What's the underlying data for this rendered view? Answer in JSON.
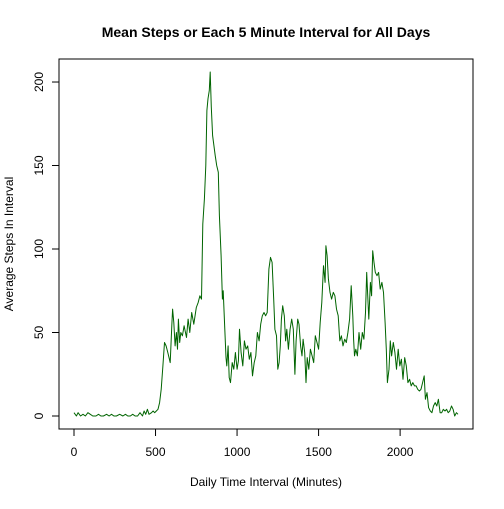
{
  "chart_data": {
    "type": "line",
    "title": "Mean Steps or Each 5 Minute Interval for All Days",
    "xlabel": "Daily Time Interval (Minutes)",
    "ylabel": "Average Steps In Interval",
    "xlim": [
      0,
      2355
    ],
    "ylim": [
      0,
      206
    ],
    "x_ticks": [
      0,
      500,
      1000,
      1500,
      2000
    ],
    "y_ticks": [
      0,
      50,
      100,
      150,
      200
    ],
    "grid": false,
    "legend": "none",
    "series": [
      {
        "color": "#006400",
        "points": [
          [
            0,
            2
          ],
          [
            15,
            0
          ],
          [
            25,
            2
          ],
          [
            40,
            0
          ],
          [
            55,
            1
          ],
          [
            70,
            0
          ],
          [
            85,
            2
          ],
          [
            100,
            1
          ],
          [
            115,
            0
          ],
          [
            135,
            0
          ],
          [
            150,
            1
          ],
          [
            165,
            0
          ],
          [
            180,
            0
          ],
          [
            200,
            1
          ],
          [
            215,
            0
          ],
          [
            230,
            1
          ],
          [
            245,
            0
          ],
          [
            260,
            0
          ],
          [
            280,
            1
          ],
          [
            300,
            0
          ],
          [
            315,
            1
          ],
          [
            330,
            0
          ],
          [
            345,
            0
          ],
          [
            360,
            1
          ],
          [
            375,
            0
          ],
          [
            390,
            0
          ],
          [
            405,
            2
          ],
          [
            420,
            0
          ],
          [
            430,
            3
          ],
          [
            440,
            1
          ],
          [
            450,
            4
          ],
          [
            460,
            1
          ],
          [
            475,
            2
          ],
          [
            485,
            3
          ],
          [
            495,
            2
          ],
          [
            505,
            3
          ],
          [
            515,
            4
          ],
          [
            525,
            8
          ],
          [
            535,
            16
          ],
          [
            545,
            30
          ],
          [
            555,
            44
          ],
          [
            565,
            42
          ],
          [
            575,
            38
          ],
          [
            590,
            32
          ],
          [
            600,
            54
          ],
          [
            605,
            64
          ],
          [
            612,
            56
          ],
          [
            620,
            42
          ],
          [
            628,
            50
          ],
          [
            635,
            40
          ],
          [
            640,
            58
          ],
          [
            648,
            44
          ],
          [
            655,
            50
          ],
          [
            665,
            48
          ],
          [
            675,
            54
          ],
          [
            690,
            47
          ],
          [
            700,
            58
          ],
          [
            710,
            50
          ],
          [
            722,
            62
          ],
          [
            735,
            55
          ],
          [
            750,
            65
          ],
          [
            762,
            68
          ],
          [
            772,
            72
          ],
          [
            782,
            70
          ],
          [
            790,
            115
          ],
          [
            800,
            130
          ],
          [
            808,
            150
          ],
          [
            815,
            183
          ],
          [
            822,
            190
          ],
          [
            830,
            195
          ],
          [
            835,
            206
          ],
          [
            842,
            185
          ],
          [
            850,
            168
          ],
          [
            858,
            162
          ],
          [
            866,
            156
          ],
          [
            875,
            150
          ],
          [
            885,
            146
          ],
          [
            892,
            120
          ],
          [
            902,
            96
          ],
          [
            910,
            70
          ],
          [
            915,
            75
          ],
          [
            925,
            52
          ],
          [
            932,
            35
          ],
          [
            937,
            30
          ],
          [
            945,
            42
          ],
          [
            952,
            23
          ],
          [
            960,
            20
          ],
          [
            970,
            32
          ],
          [
            980,
            28
          ],
          [
            990,
            38
          ],
          [
            1000,
            28
          ],
          [
            1008,
            33
          ],
          [
            1015,
            52
          ],
          [
            1025,
            38
          ],
          [
            1035,
            30
          ],
          [
            1045,
            45
          ],
          [
            1055,
            40
          ],
          [
            1065,
            42
          ],
          [
            1075,
            34
          ],
          [
            1085,
            38
          ],
          [
            1095,
            24
          ],
          [
            1105,
            32
          ],
          [
            1115,
            36
          ],
          [
            1125,
            50
          ],
          [
            1135,
            45
          ],
          [
            1145,
            55
          ],
          [
            1155,
            60
          ],
          [
            1165,
            62
          ],
          [
            1175,
            60
          ],
          [
            1185,
            62
          ],
          [
            1195,
            88
          ],
          [
            1205,
            95
          ],
          [
            1215,
            92
          ],
          [
            1225,
            70
          ],
          [
            1232,
            52
          ],
          [
            1242,
            48
          ],
          [
            1250,
            28
          ],
          [
            1258,
            32
          ],
          [
            1265,
            42
          ],
          [
            1272,
            58
          ],
          [
            1280,
            66
          ],
          [
            1290,
            60
          ],
          [
            1298,
            45
          ],
          [
            1305,
            52
          ],
          [
            1315,
            40
          ],
          [
            1325,
            52
          ],
          [
            1335,
            58
          ],
          [
            1345,
            52
          ],
          [
            1355,
            25
          ],
          [
            1362,
            45
          ],
          [
            1372,
            58
          ],
          [
            1380,
            55
          ],
          [
            1390,
            42
          ],
          [
            1398,
            36
          ],
          [
            1405,
            46
          ],
          [
            1415,
            38
          ],
          [
            1423,
            20
          ],
          [
            1430,
            35
          ],
          [
            1440,
            28
          ],
          [
            1450,
            40
          ],
          [
            1460,
            36
          ],
          [
            1470,
            32
          ],
          [
            1480,
            48
          ],
          [
            1490,
            44
          ],
          [
            1500,
            40
          ],
          [
            1510,
            56
          ],
          [
            1520,
            68
          ],
          [
            1530,
            90
          ],
          [
            1540,
            80
          ],
          [
            1545,
            102
          ],
          [
            1552,
            96
          ],
          [
            1560,
            82
          ],
          [
            1570,
            74
          ],
          [
            1580,
            70
          ],
          [
            1590,
            74
          ],
          [
            1600,
            72
          ],
          [
            1610,
            64
          ],
          [
            1620,
            60
          ],
          [
            1630,
            45
          ],
          [
            1640,
            48
          ],
          [
            1650,
            42
          ],
          [
            1660,
            46
          ],
          [
            1670,
            44
          ],
          [
            1680,
            50
          ],
          [
            1690,
            58
          ],
          [
            1700,
            78
          ],
          [
            1710,
            60
          ],
          [
            1715,
            46
          ],
          [
            1720,
            36
          ],
          [
            1728,
            40
          ],
          [
            1738,
            36
          ],
          [
            1748,
            50
          ],
          [
            1758,
            40
          ],
          [
            1768,
            50
          ],
          [
            1778,
            46
          ],
          [
            1788,
            62
          ],
          [
            1795,
            86
          ],
          [
            1800,
            75
          ],
          [
            1808,
            58
          ],
          [
            1818,
            80
          ],
          [
            1825,
            72
          ],
          [
            1832,
            99
          ],
          [
            1840,
            92
          ],
          [
            1848,
            86
          ],
          [
            1858,
            84
          ],
          [
            1868,
            86
          ],
          [
            1878,
            76
          ],
          [
            1888,
            80
          ],
          [
            1898,
            74
          ],
          [
            1908,
            56
          ],
          [
            1915,
            40
          ],
          [
            1922,
            20
          ],
          [
            1932,
            28
          ],
          [
            1940,
            45
          ],
          [
            1948,
            36
          ],
          [
            1958,
            44
          ],
          [
            1968,
            38
          ],
          [
            1978,
            28
          ],
          [
            1988,
            40
          ],
          [
            1998,
            30
          ],
          [
            2008,
            34
          ],
          [
            2018,
            22
          ],
          [
            2028,
            35
          ],
          [
            2038,
            30
          ],
          [
            2048,
            20
          ],
          [
            2058,
            22
          ],
          [
            2068,
            18
          ],
          [
            2078,
            20
          ],
          [
            2088,
            18
          ],
          [
            2098,
            18
          ],
          [
            2108,
            16
          ],
          [
            2118,
            15
          ],
          [
            2128,
            16
          ],
          [
            2138,
            20
          ],
          [
            2148,
            24
          ],
          [
            2155,
            10
          ],
          [
            2165,
            14
          ],
          [
            2175,
            5
          ],
          [
            2185,
            3
          ],
          [
            2195,
            2
          ],
          [
            2205,
            6
          ],
          [
            2215,
            8
          ],
          [
            2225,
            6
          ],
          [
            2235,
            10
          ],
          [
            2245,
            2
          ],
          [
            2255,
            2
          ],
          [
            2265,
            4
          ],
          [
            2275,
            3
          ],
          [
            2285,
            4
          ],
          [
            2295,
            2
          ],
          [
            2305,
            3
          ],
          [
            2315,
            6
          ],
          [
            2325,
            4
          ],
          [
            2335,
            0
          ],
          [
            2345,
            2
          ],
          [
            2355,
            1
          ]
        ]
      }
    ]
  }
}
